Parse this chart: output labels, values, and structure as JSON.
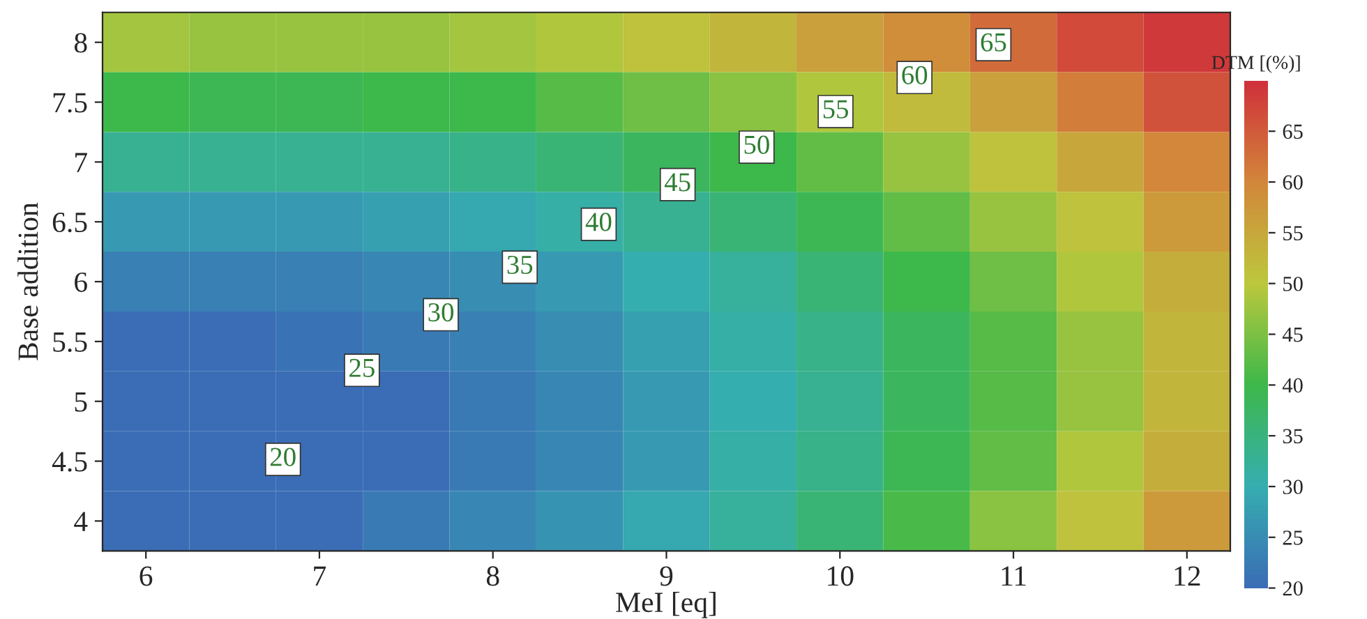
{
  "chart_data": {
    "type": "heatmap",
    "xlabel": "MeI [eq]",
    "ylabel": "Base addition",
    "clabel": "DTM [(%)]",
    "categories": [
      "6",
      null,
      "7",
      null,
      "8",
      null,
      "9",
      null,
      "10",
      null,
      "11",
      null,
      "12"
    ],
    "y_categories": [
      "8",
      "7.5",
      "7",
      "6.5",
      "6",
      "5.5",
      "5",
      "4.5",
      "4"
    ],
    "cells": [
      [
        48,
        47,
        47,
        47,
        48,
        49,
        51,
        53,
        56,
        59,
        63,
        67,
        69
      ],
      [
        40,
        39,
        39,
        40,
        40,
        42,
        44,
        46,
        49,
        52,
        56,
        61,
        66
      ],
      [
        33,
        33,
        33,
        33,
        34,
        36,
        38,
        40,
        43,
        47,
        51,
        55,
        60
      ],
      [
        27,
        27,
        27,
        28,
        29,
        31,
        33,
        36,
        39,
        43,
        47,
        51,
        57
      ],
      [
        23,
        23,
        23,
        24,
        25,
        27,
        30,
        32,
        36,
        40,
        44,
        49,
        54
      ],
      [
        20,
        20,
        21,
        22,
        23,
        25,
        28,
        31,
        34,
        38,
        42,
        47,
        53
      ],
      [
        18,
        19,
        19,
        20,
        22,
        24,
        27,
        30,
        33,
        38,
        42,
        47,
        53
      ],
      [
        18,
        18,
        19,
        20,
        22,
        24,
        27,
        31,
        34,
        39,
        43,
        49,
        54
      ],
      [
        19,
        19,
        20,
        22,
        24,
        26,
        29,
        32,
        36,
        41,
        46,
        51,
        57
      ]
    ],
    "clim": [
      20,
      70
    ],
    "cticks": [
      20,
      25,
      30,
      35,
      40,
      45,
      50,
      55,
      60,
      65
    ],
    "annotations": [
      "20",
      "25",
      "30",
      "35",
      "40",
      "45",
      "50",
      "55",
      "60",
      "65"
    ]
  }
}
